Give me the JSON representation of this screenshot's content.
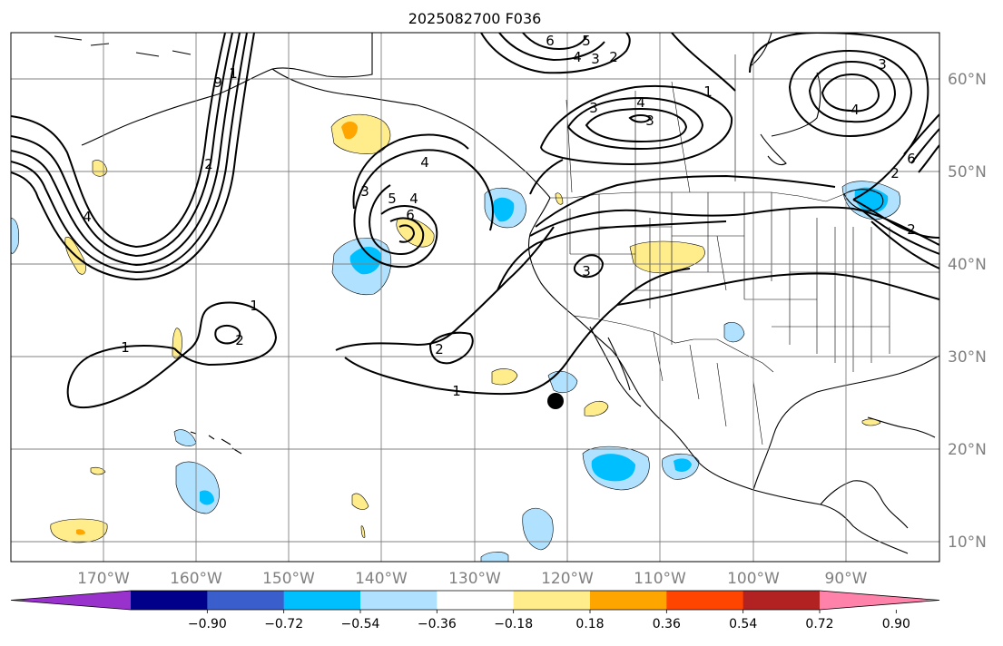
{
  "title": "2025082700 F036",
  "lon_ticks": [
    "170°W",
    "160°W",
    "150°W",
    "140°W",
    "130°W",
    "120°W",
    "110°W",
    "100°W",
    "90°W"
  ],
  "lat_ticks": [
    "60°N",
    "50°N",
    "40°N",
    "30°N",
    "20°N",
    "10°N"
  ],
  "colorbar": {
    "levels": [
      "−0.90",
      "−0.72",
      "−0.54",
      "−0.36",
      "−0.18",
      "0.18",
      "0.36",
      "0.54",
      "0.72",
      "0.90"
    ],
    "colors": [
      "#9932cc",
      "#00008b",
      "#3a5fcd",
      "#00bfff",
      "#b0e2ff",
      "#ffffff",
      "#ffec8b",
      "#ffa500",
      "#ff4500",
      "#b22222",
      "#ff82ab"
    ]
  },
  "contour_labels": {
    "west_trough_1": "1",
    "west_trough_9": "9",
    "west_trough_2": "2",
    "west_trough_4": "4",
    "low_3": "3",
    "low_5": "5",
    "low_4": "4",
    "low_6": "6",
    "low_4b": "4",
    "sub_1a": "1",
    "sub_1b": "1",
    "sub_2": "2",
    "sub_1c": "1",
    "east_2": "2",
    "east_3": "3",
    "north_6": "6",
    "north_5": "5",
    "north_4": "4",
    "north_3": "3",
    "north_2": "2",
    "canada_3": "3",
    "canada_4": "4",
    "canada_3b": "3",
    "canada_1": "1",
    "ne_3": "3",
    "ne_4": "4",
    "ne_2": "2",
    "ne_6": "6",
    "ne_2b": "2"
  }
}
